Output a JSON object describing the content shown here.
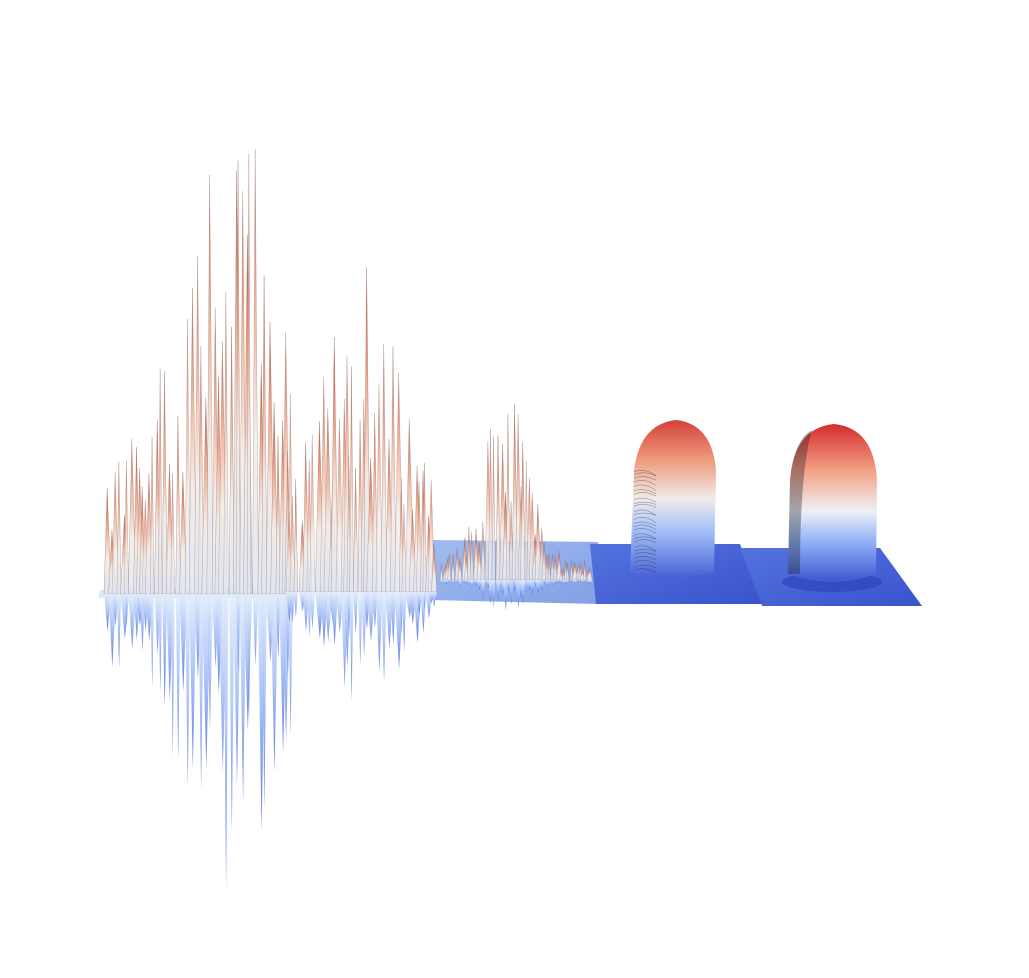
{
  "figure": {
    "description_free": true,
    "panel_count": 5,
    "colormap": [
      "#3b4cc0",
      "#6f92f3",
      "#aac7fd",
      "#dddddd",
      "#f6b69b",
      "#e6745b",
      "#b40426"
    ],
    "panels": [
      {
        "id": "p1",
        "style": "very-noisy"
      },
      {
        "id": "p2",
        "style": "noisy"
      },
      {
        "id": "p3",
        "style": "moderate-noise"
      },
      {
        "id": "p4",
        "style": "light-noise"
      },
      {
        "id": "p5",
        "style": "smooth"
      }
    ]
  }
}
